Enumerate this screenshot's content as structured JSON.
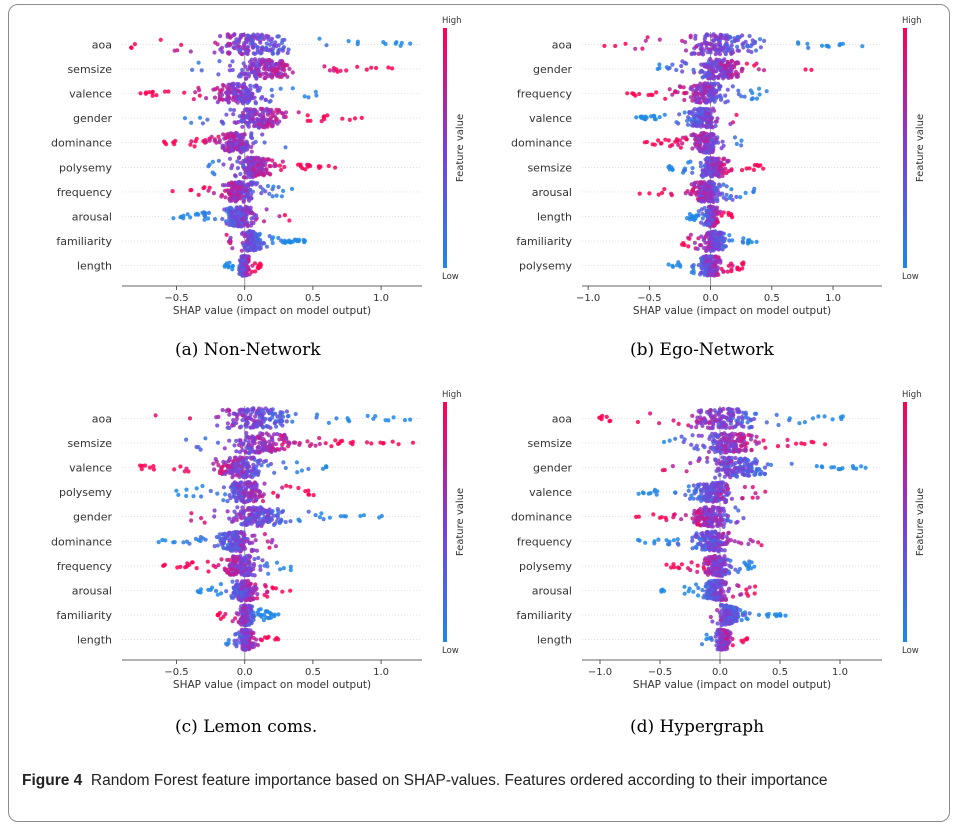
{
  "figure": {
    "label": "Figure 4",
    "caption": "Random Forest feature importance based on SHAP-values. Features ordered according to their importance"
  },
  "colorbar": {
    "high": "High",
    "low": "Low",
    "title": "Feature value",
    "high_color": "#ff0052",
    "mid_color": "#7a3fd8",
    "low_color": "#1e88e5"
  },
  "chart_data": [
    {
      "type": "scatter",
      "subtype": "shap-beeswarm",
      "caption": "(a) Non-Network",
      "xlabel": "SHAP value (impact on model output)",
      "xticks": [
        -0.5,
        0.0,
        0.5,
        1.0
      ],
      "xlim": [
        -0.9,
        1.3
      ],
      "features": [
        "aoa",
        "semsize",
        "valence",
        "gender",
        "dominance",
        "polysemy",
        "frequency",
        "arousal",
        "familiarity",
        "length"
      ],
      "ranges": [
        [
          -0.85,
          1.25
        ],
        [
          -0.4,
          1.25
        ],
        [
          -0.8,
          0.6
        ],
        [
          -0.45,
          0.95
        ],
        [
          -0.65,
          0.3
        ],
        [
          -0.3,
          0.7
        ],
        [
          -0.55,
          0.35
        ],
        [
          -0.55,
          0.35
        ],
        [
          -0.15,
          0.45
        ],
        [
          -0.15,
          0.12
        ]
      ]
    },
    {
      "type": "scatter",
      "subtype": "shap-beeswarm",
      "caption": "(b) Ego-Network",
      "xlabel": "SHAP value (impact on model output)",
      "xticks": [
        -1.0,
        -0.5,
        0.0,
        0.5,
        1.0
      ],
      "xlim": [
        -1.05,
        1.4
      ],
      "features": [
        "aoa",
        "gender",
        "frequency",
        "valence",
        "dominance",
        "semsize",
        "arousal",
        "length",
        "familiarity",
        "polysemy"
      ],
      "ranges": [
        [
          -0.9,
          1.35
        ],
        [
          -0.45,
          0.85
        ],
        [
          -0.7,
          0.5
        ],
        [
          -0.65,
          0.3
        ],
        [
          -0.55,
          0.3
        ],
        [
          -0.35,
          0.45
        ],
        [
          -0.6,
          0.4
        ],
        [
          -0.2,
          0.2
        ],
        [
          -0.25,
          0.4
        ],
        [
          -0.35,
          0.3
        ]
      ]
    },
    {
      "type": "scatter",
      "subtype": "shap-beeswarm",
      "caption": "(c) Lemon coms.",
      "xlabel": "SHAP value (impact on model output)",
      "xticks": [
        -0.5,
        0.0,
        0.5,
        1.0
      ],
      "xlim": [
        -0.9,
        1.3
      ],
      "features": [
        "aoa",
        "semsize",
        "valence",
        "polysemy",
        "gender",
        "dominance",
        "frequency",
        "arousal",
        "familiarity",
        "length"
      ],
      "ranges": [
        [
          -0.85,
          1.25
        ],
        [
          -0.45,
          1.3
        ],
        [
          -0.8,
          0.6
        ],
        [
          -0.55,
          0.6
        ],
        [
          -0.4,
          1.05
        ],
        [
          -0.65,
          0.25
        ],
        [
          -0.6,
          0.35
        ],
        [
          -0.35,
          0.35
        ],
        [
          -0.2,
          0.25
        ],
        [
          -0.15,
          0.25
        ]
      ]
    },
    {
      "type": "scatter",
      "subtype": "shap-beeswarm",
      "caption": "(d) Hypergraph",
      "xlabel": "SHAP value (impact on model output)",
      "xticks": [
        -1.0,
        -0.5,
        0.0,
        0.5,
        1.0
      ],
      "xlim": [
        -1.15,
        1.35
      ],
      "features": [
        "aoa",
        "semsize",
        "gender",
        "valence",
        "dominance",
        "frequency",
        "polysemy",
        "arousal",
        "familiarity",
        "length"
      ],
      "ranges": [
        [
          -1.05,
          1.1
        ],
        [
          -0.5,
          0.95
        ],
        [
          -0.5,
          1.25
        ],
        [
          -0.75,
          0.4
        ],
        [
          -0.8,
          0.3
        ],
        [
          -0.7,
          0.35
        ],
        [
          -0.45,
          0.3
        ],
        [
          -0.5,
          0.3
        ],
        [
          -0.1,
          0.55
        ],
        [
          -0.15,
          0.3
        ]
      ]
    }
  ]
}
